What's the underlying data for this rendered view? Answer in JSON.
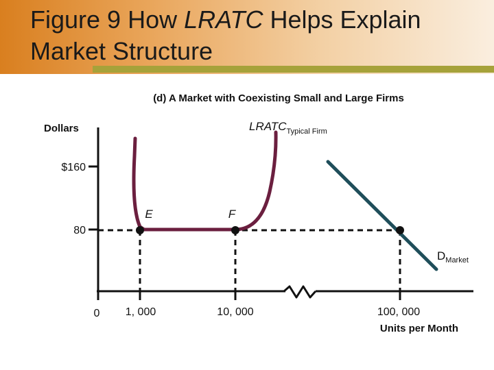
{
  "slide": {
    "title_prefix": "Figure 9 How ",
    "title_italic": "LRATC",
    "title_suffix": " Helps Explain Market Structure"
  },
  "chart_data": {
    "type": "line",
    "title": "(d) A Market with Coexisting Small and Large Firms",
    "ylabel": "Dollars",
    "xlabel": "Units per Month",
    "y_ticks": [
      "$160",
      "80"
    ],
    "x_ticks": [
      "0",
      "1, 000",
      "10, 000",
      "100, 000"
    ],
    "axis_break": true,
    "series": [
      {
        "name": "LRATC",
        "name_subscript": "Typical Firm",
        "color": "#6b1f3f",
        "points": [
          {
            "x": 1000,
            "y": 80
          },
          {
            "x": 10000,
            "y": 80
          }
        ]
      },
      {
        "name": "D",
        "name_subscript": "Market",
        "color": "#1f4e5a",
        "points": [
          {
            "x": 100000,
            "y": 80
          }
        ]
      }
    ],
    "annotations": [
      {
        "label": "E",
        "x": 1000,
        "y": 80
      },
      {
        "label": "F",
        "x": 10000,
        "y": 80
      }
    ]
  }
}
